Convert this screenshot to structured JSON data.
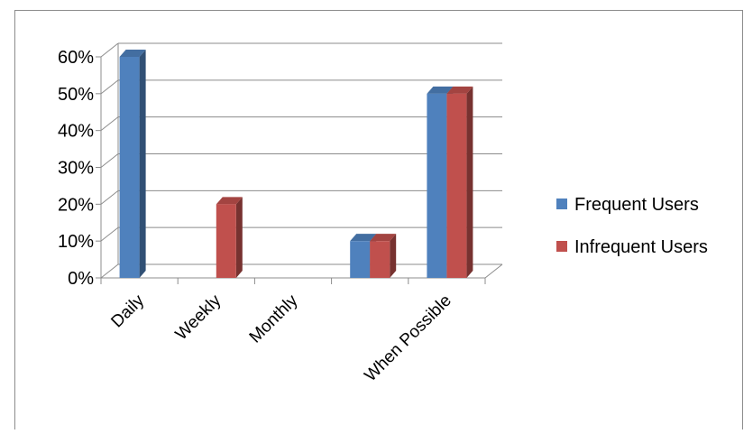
{
  "chart_data": {
    "type": "bar",
    "style": "3d-clustered-column",
    "categories": [
      "Daily",
      "Weekly",
      "Monthly",
      "",
      "When Possible"
    ],
    "series": [
      {
        "name": "Frequent Users",
        "values": [
          60,
          0,
          0,
          10,
          50
        ],
        "color": "#4f81bd"
      },
      {
        "name": "Infrequent Users",
        "values": [
          0,
          20,
          0,
          10,
          50
        ],
        "color": "#c0504d"
      }
    ],
    "y_ticks": [
      "0%",
      "10%",
      "20%",
      "30%",
      "40%",
      "50%",
      "60%"
    ],
    "ylim": [
      0,
      60
    ],
    "y_unit": "%",
    "grid": true,
    "legend": "right"
  }
}
